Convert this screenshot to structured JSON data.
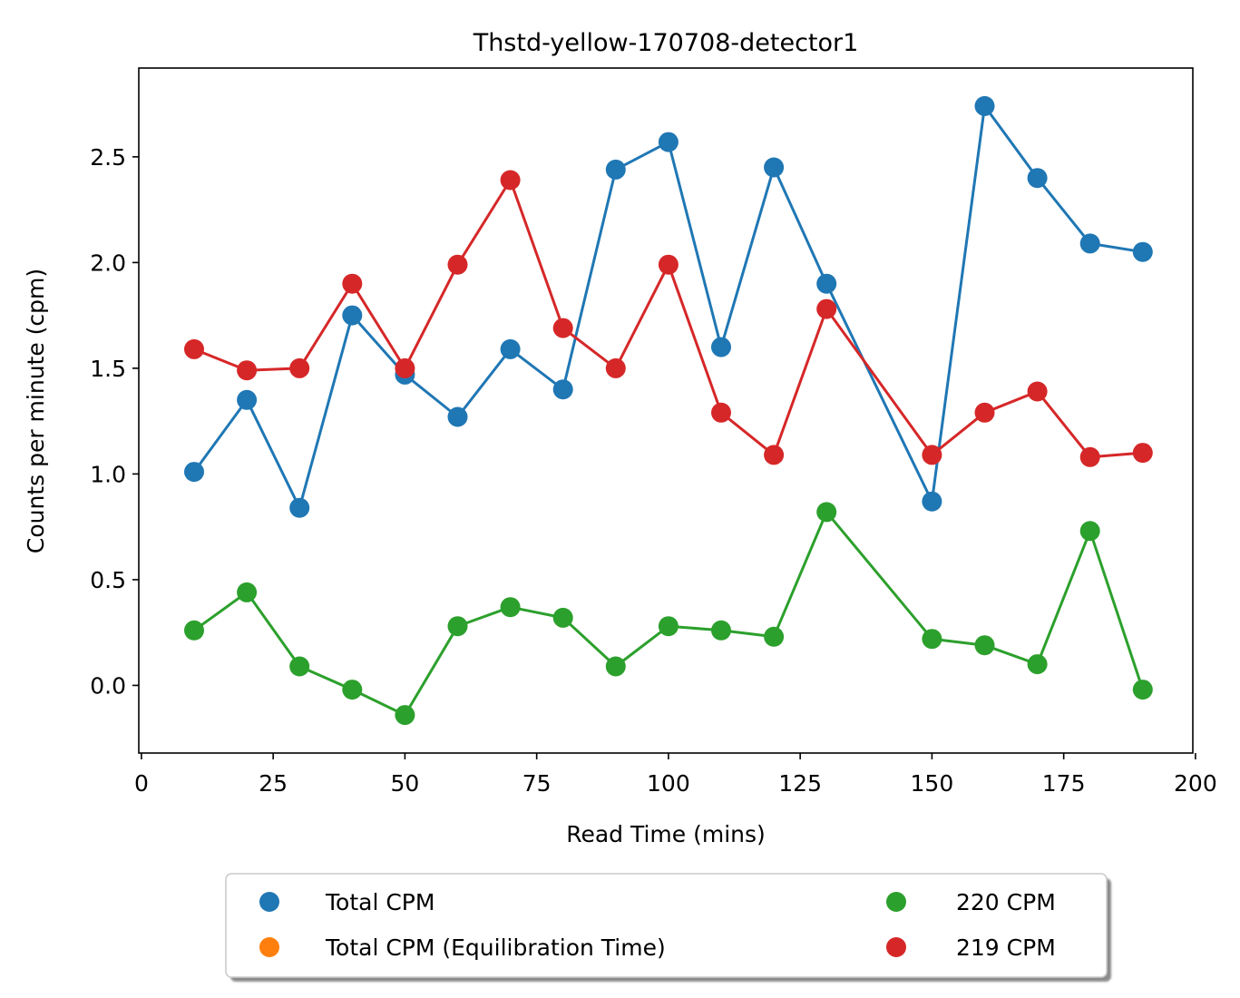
{
  "chart_data": {
    "type": "line",
    "title": "Thstd-yellow-170708-detector1",
    "xlabel": "Read Time (mins)",
    "ylabel": "Counts per minute (cpm)",
    "xlim": [
      -0.5,
      199.5
    ],
    "ylim": [
      -0.32,
      2.92
    ],
    "xticks": [
      0,
      25,
      50,
      75,
      100,
      125,
      150,
      175,
      200
    ],
    "xtick_labels": [
      "0",
      "25",
      "50",
      "75",
      "100",
      "125",
      "150",
      "175",
      "200"
    ],
    "yticks": [
      0.0,
      0.5,
      1.0,
      1.5,
      2.0,
      2.5
    ],
    "ytick_labels": [
      "0.0",
      "0.5",
      "1.0",
      "1.5",
      "2.0",
      "2.5"
    ],
    "grid": false,
    "legend_placement": "below",
    "series": [
      {
        "name": "Total CPM",
        "color": "#1f77b4",
        "x": [
          10,
          20,
          30,
          40,
          50,
          60,
          70,
          80,
          90,
          100,
          110,
          120,
          130,
          150,
          160,
          170,
          180,
          190
        ],
        "values": [
          1.01,
          1.35,
          0.84,
          1.75,
          1.47,
          1.27,
          1.59,
          1.4,
          2.44,
          2.57,
          1.6,
          2.45,
          1.9,
          0.87,
          2.74,
          2.4,
          2.09,
          2.05
        ]
      },
      {
        "name": "Total CPM (Equilibration Time)",
        "color": "#ff7f0e",
        "x": [],
        "values": []
      },
      {
        "name": "220 CPM",
        "color": "#2ca02c",
        "x": [
          10,
          20,
          30,
          40,
          50,
          60,
          70,
          80,
          90,
          100,
          110,
          120,
          130,
          150,
          160,
          170,
          180,
          190
        ],
        "values": [
          0.26,
          0.44,
          0.09,
          -0.02,
          -0.14,
          0.28,
          0.37,
          0.32,
          0.09,
          0.28,
          0.26,
          0.23,
          0.82,
          0.22,
          0.19,
          0.1,
          0.73,
          -0.02
        ]
      },
      {
        "name": "219 CPM",
        "color": "#d62728",
        "x": [
          10,
          20,
          30,
          40,
          50,
          60,
          70,
          80,
          90,
          100,
          110,
          120,
          130,
          150,
          160,
          170,
          180,
          190
        ],
        "values": [
          1.59,
          1.49,
          1.5,
          1.9,
          1.5,
          1.99,
          2.39,
          1.69,
          1.5,
          1.99,
          1.29,
          1.09,
          1.78,
          1.09,
          1.29,
          1.39,
          1.08,
          1.1
        ]
      }
    ],
    "legend": {
      "left_column": [
        "Total CPM",
        "Total CPM (Equilibration Time)"
      ],
      "right_column": [
        "220 CPM",
        "219 CPM"
      ]
    }
  }
}
